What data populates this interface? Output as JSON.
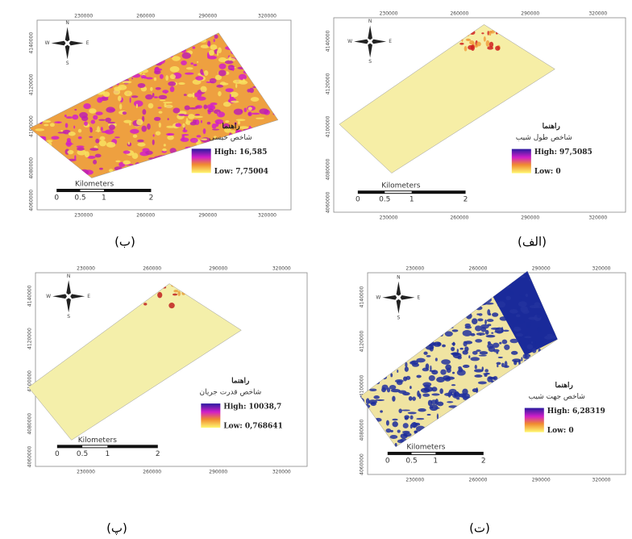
{
  "axes": {
    "x_ticks": [
      "230000",
      "260000",
      "290000",
      "320000"
    ],
    "y_ticks": [
      "4140000",
      "4120000",
      "4100000",
      "4080000",
      "4060000"
    ]
  },
  "compass": [
    "N",
    "E",
    "S",
    "W"
  ],
  "scale_bar": {
    "title": "Kilometers",
    "labels": [
      "0",
      "0.5",
      "1",
      "2"
    ]
  },
  "panels": [
    {
      "caption": "(ب)",
      "legend_title": "راهنما",
      "legend_name": "شاخص خیسی",
      "high": "High: 16,585",
      "low": "Low: 7,75004"
    },
    {
      "caption": "(الف)",
      "legend_title": "راهنما",
      "legend_name": "شاخص طول شیب",
      "high": "High: 97,5085",
      "low": "Low: 0"
    },
    {
      "caption": "(پ)",
      "legend_title": "راهنما",
      "legend_name": "شاخص قدرت جریان",
      "high": "High: 10038,7",
      "low": "Low: 0,768641"
    },
    {
      "caption": "(ت)",
      "legend_title": "راهنما",
      "legend_name": "شاخص جهت شیب",
      "high": "High: 6,28319",
      "low": "Low: 0"
    }
  ]
}
